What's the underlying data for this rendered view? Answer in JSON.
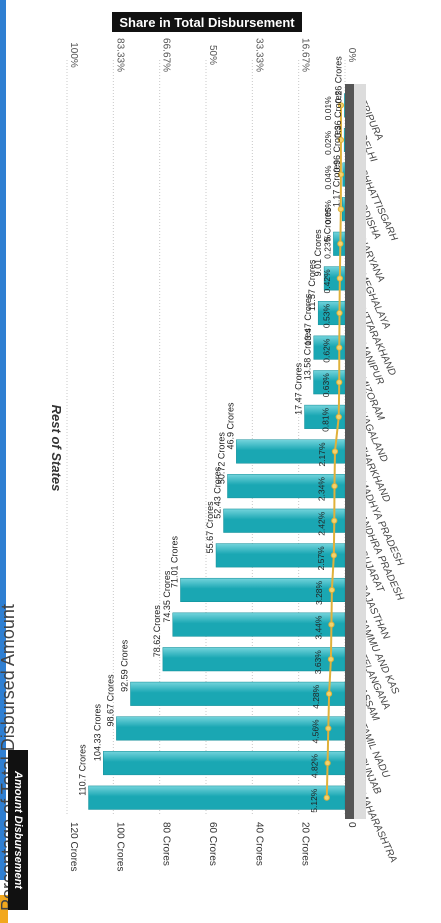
{
  "page": {
    "title": "Percentage of Total Disbursed Amount"
  },
  "colors": {
    "bar": "#1aa7b3",
    "bar_highlight": "#74d4dc",
    "line": "#e0b13a",
    "line_marker": "#f3d36f",
    "axis_dark": "#555555",
    "grid": "#c8c8c8"
  },
  "chart_data": {
    "type": "bar",
    "title": "Share in Total Disbursement",
    "section_label": "Rest of States",
    "ylabel": "Amount Disbursement",
    "ylim": [
      0,
      120
    ],
    "yticks": [
      "0",
      "20 Crores",
      "40 Crores",
      "60 Crores",
      "80 Crores",
      "100 Crores",
      "120 Crores"
    ],
    "secondary_ylim": [
      0,
      100
    ],
    "secondary_ticks": [
      "0%",
      "16.67%",
      "33.33%",
      "50%",
      "66.67%",
      "83.33%",
      "100%"
    ],
    "categories": [
      "MAHARASHTRA",
      "PUNJAB",
      "TAMIL NADU",
      "ASSAM",
      "TELANGANA",
      "JAMMU AND KAS",
      "RAJASTHAN",
      "GUJARAT",
      "ANDHRA PRADESH",
      "MADHYA PRADESH",
      "JHARKHAND",
      "NAGALAND",
      "MIZORAM",
      "MANIPUR",
      "UTTARAKHAND",
      "MEGHALAYA",
      "HARYANA",
      "ODISHA",
      "CHHATTISGARH",
      "DELHI",
      "TRIPURA"
    ],
    "series": [
      {
        "name": "Amount Disbursement",
        "values": [
          110.7,
          104.33,
          98.67,
          92.59,
          78.62,
          74.35,
          71.01,
          55.67,
          52.43,
          50.72,
          46.9,
          17.47,
          13.58,
          13.47,
          11.57,
          9.01,
          5,
          1.17,
          0.96,
          0.36,
          0.26
        ],
        "labels": [
          "110.7 Crores",
          "104.33 Crores",
          "98.67 Crores",
          "92.59 Crores",
          "78.62 Crores",
          "74.35 Crores",
          "71.01 Crores",
          "55.67 Crores",
          "52.43 Crores",
          "50.72 Crores",
          "46.9 Crores",
          "17.47 Crores",
          "13.58 Crores",
          "13.47 Crores",
          "11.57 Crores",
          "9.01 Crores",
          "5 Crores",
          "1.17 Crores",
          "0.96 Crores",
          "0.36 Crores",
          "0.26 Crores"
        ]
      },
      {
        "values": [
          5.12,
          4.82,
          4.56,
          4.28,
          3.63,
          3.44,
          3.28,
          2.57,
          2.42,
          2.34,
          2.17,
          0.81,
          0.63,
          0.62,
          0.53,
          0.42,
          0.23,
          0.05,
          0.04,
          0.02,
          0.01
        ],
        "labels": [
          "5.12%",
          "4.82%",
          "4.56%",
          "4.28%",
          "3.63%",
          "3.44%",
          "3.28%",
          "2.57%",
          "2.42%",
          "2.34%",
          "2.17%",
          "0.81%",
          "0.63%",
          "0.62%",
          "0.53%",
          "0.42%",
          "0.23%",
          "0.05%",
          "0.04%",
          "0.02%",
          "0.01%"
        ]
      }
    ],
    "grid": true
  }
}
